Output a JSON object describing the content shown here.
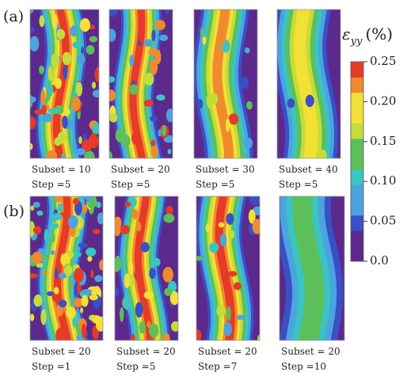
{
  "figure": {
    "rows": [
      {
        "label": "(a)",
        "panels": [
          {
            "subset": "Subset = 10",
            "step": "Step =5"
          },
          {
            "subset": "Subset = 20",
            "step": "Step =5"
          },
          {
            "subset": "Subset = 30",
            "step": "Step =5"
          },
          {
            "subset": "Subset = 40",
            "step": "Step =5"
          }
        ]
      },
      {
        "label": "(b)",
        "panels": [
          {
            "subset": "Subset = 20",
            "step": "Step =1"
          },
          {
            "subset": "Subset = 20",
            "step": "Step =5"
          },
          {
            "subset": "Subset = 20",
            "step": "Step =7"
          },
          {
            "subset": "Subset = 20",
            "step": "Step =10"
          }
        ]
      }
    ],
    "colorbar": {
      "symbol": "ε",
      "subscript": "yy",
      "unit": "(%)",
      "lim": [
        0,
        0.25
      ],
      "ticks": [
        {
          "value": 0,
          "label": "0.0"
        },
        {
          "value": 0.05,
          "label": "0.05"
        },
        {
          "value": 0.1,
          "label": "0.10"
        },
        {
          "value": 0.15,
          "label": "0.15"
        },
        {
          "value": 0.2,
          "label": "0.20"
        },
        {
          "value": 0.25,
          "label": "0.25"
        }
      ]
    }
  }
}
